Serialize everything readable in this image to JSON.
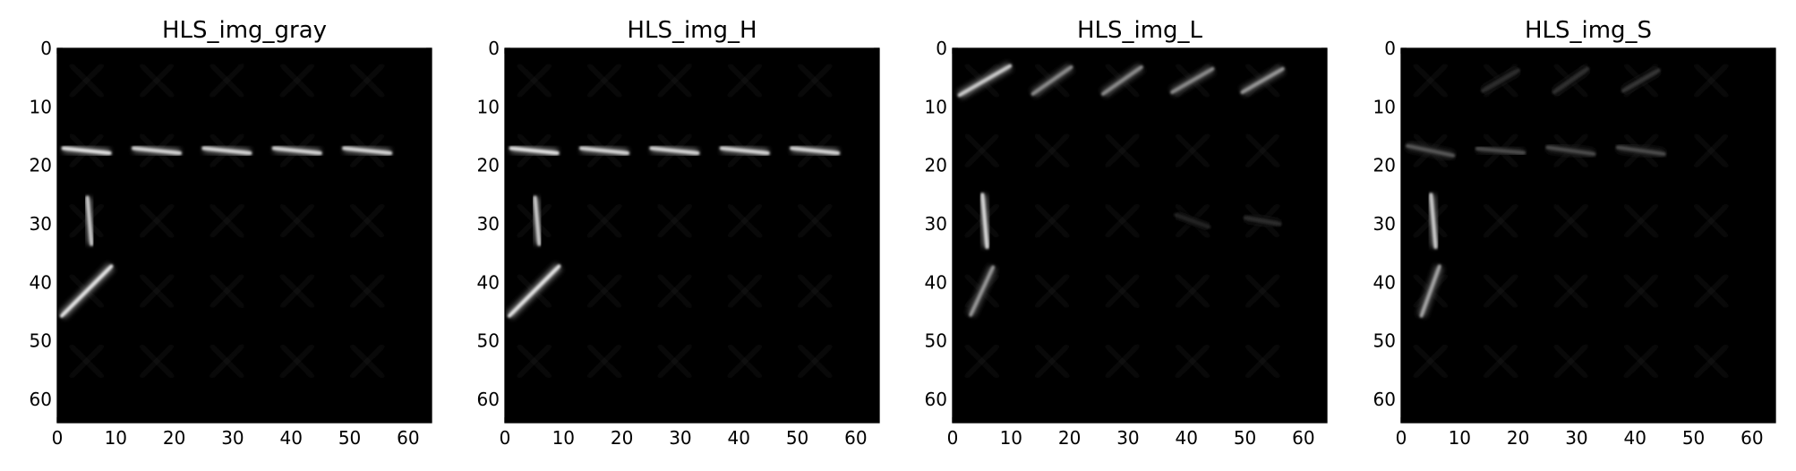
{
  "chart_data": [
    {
      "type": "heatmap",
      "title": "HLS_img_gray",
      "colormap": "gray",
      "xlim": [
        0,
        64
      ],
      "ylim": [
        64,
        0
      ],
      "x_ticks": [
        0,
        10,
        20,
        30,
        40,
        50,
        60
      ],
      "y_ticks": [
        0,
        10,
        20,
        30,
        40,
        50,
        60
      ],
      "features": [
        {
          "kind": "dash",
          "cx": 5,
          "cy": 17.5,
          "angle": 6,
          "length": 8,
          "intensity": 0.9
        },
        {
          "kind": "dash",
          "cx": 17,
          "cy": 17.5,
          "angle": 6,
          "length": 8,
          "intensity": 0.85
        },
        {
          "kind": "dash",
          "cx": 29,
          "cy": 17.5,
          "angle": 6,
          "length": 8,
          "intensity": 0.85
        },
        {
          "kind": "dash",
          "cx": 41,
          "cy": 17.5,
          "angle": 6,
          "length": 8,
          "intensity": 0.85
        },
        {
          "kind": "dash",
          "cx": 53,
          "cy": 17.5,
          "angle": 6,
          "length": 8,
          "intensity": 0.85
        },
        {
          "kind": "dash",
          "cx": 5.5,
          "cy": 29.5,
          "angle": 85,
          "length": 8,
          "intensity": 0.8
        },
        {
          "kind": "dash",
          "cx": 5,
          "cy": 41.5,
          "angle": 135,
          "length": 12,
          "intensity": 0.9
        }
      ]
    },
    {
      "type": "heatmap",
      "title": "HLS_img_H",
      "colormap": "gray",
      "xlim": [
        0,
        64
      ],
      "ylim": [
        64,
        0
      ],
      "x_ticks": [
        0,
        10,
        20,
        30,
        40,
        50,
        60
      ],
      "y_ticks": [
        0,
        10,
        20,
        30,
        40,
        50,
        60
      ],
      "features": [
        {
          "kind": "dash",
          "cx": 5,
          "cy": 17.5,
          "angle": 6,
          "length": 8,
          "intensity": 0.9
        },
        {
          "kind": "dash",
          "cx": 17,
          "cy": 17.5,
          "angle": 6,
          "length": 8,
          "intensity": 0.85
        },
        {
          "kind": "dash",
          "cx": 29,
          "cy": 17.5,
          "angle": 6,
          "length": 8,
          "intensity": 0.85
        },
        {
          "kind": "dash",
          "cx": 41,
          "cy": 17.5,
          "angle": 6,
          "length": 8,
          "intensity": 0.85
        },
        {
          "kind": "dash",
          "cx": 53,
          "cy": 17.5,
          "angle": 6,
          "length": 8,
          "intensity": 0.85
        },
        {
          "kind": "dash",
          "cx": 5.5,
          "cy": 29.5,
          "angle": 85,
          "length": 8,
          "intensity": 0.8
        },
        {
          "kind": "dash",
          "cx": 5,
          "cy": 41.5,
          "angle": 135,
          "length": 12,
          "intensity": 0.9
        }
      ]
    },
    {
      "type": "heatmap",
      "title": "HLS_img_L",
      "colormap": "gray",
      "xlim": [
        0,
        64
      ],
      "ylim": [
        64,
        0
      ],
      "x_ticks": [
        0,
        10,
        20,
        30,
        40,
        50,
        60
      ],
      "y_ticks": [
        0,
        10,
        20,
        30,
        40,
        50,
        60
      ],
      "features": [
        {
          "kind": "dash",
          "cx": 5.5,
          "cy": 5.5,
          "angle": -30,
          "length": 10,
          "intensity": 0.8
        },
        {
          "kind": "dash",
          "cx": 17,
          "cy": 5.5,
          "angle": -35,
          "length": 8,
          "intensity": 0.55
        },
        {
          "kind": "dash",
          "cx": 29,
          "cy": 5.5,
          "angle": -35,
          "length": 8,
          "intensity": 0.55
        },
        {
          "kind": "dash",
          "cx": 41,
          "cy": 5.5,
          "angle": -30,
          "length": 8,
          "intensity": 0.55
        },
        {
          "kind": "dash",
          "cx": 53,
          "cy": 5.5,
          "angle": -30,
          "length": 8,
          "intensity": 0.6
        },
        {
          "kind": "band",
          "cx": 5,
          "cy": 17.5,
          "angle": 0,
          "length": 9,
          "intensity": 0.35
        },
        {
          "kind": "band",
          "cx": 17,
          "cy": 17.5,
          "angle": 0,
          "length": 9,
          "intensity": 0.3
        },
        {
          "kind": "band",
          "cx": 29,
          "cy": 17.5,
          "angle": 0,
          "length": 9,
          "intensity": 0.3
        },
        {
          "kind": "band",
          "cx": 41,
          "cy": 17.5,
          "angle": 0,
          "length": 9,
          "intensity": 0.35
        },
        {
          "kind": "band",
          "cx": 53,
          "cy": 17.5,
          "angle": 0,
          "length": 9,
          "intensity": 0.3
        },
        {
          "kind": "dash",
          "cx": 5.5,
          "cy": 29.5,
          "angle": 85,
          "length": 9,
          "intensity": 0.85
        },
        {
          "kind": "dash",
          "cx": 5,
          "cy": 41.5,
          "angle": 115,
          "length": 9,
          "intensity": 0.6
        },
        {
          "kind": "dash",
          "cx": 41,
          "cy": 29.5,
          "angle": 20,
          "length": 6,
          "intensity": 0.15
        },
        {
          "kind": "dash",
          "cx": 53,
          "cy": 29.5,
          "angle": 10,
          "length": 6,
          "intensity": 0.18
        }
      ]
    },
    {
      "type": "heatmap",
      "title": "HLS_img_S",
      "colormap": "gray",
      "xlim": [
        0,
        64
      ],
      "ylim": [
        64,
        0
      ],
      "x_ticks": [
        0,
        10,
        20,
        30,
        40,
        50,
        60
      ],
      "y_ticks": [
        0,
        10,
        20,
        30,
        40,
        50,
        60
      ],
      "features": [
        {
          "kind": "dash",
          "cx": 17,
          "cy": 5.5,
          "angle": -30,
          "length": 7,
          "intensity": 0.18
        },
        {
          "kind": "dash",
          "cx": 29,
          "cy": 5.5,
          "angle": -35,
          "length": 7,
          "intensity": 0.2
        },
        {
          "kind": "dash",
          "cx": 41,
          "cy": 5.5,
          "angle": -30,
          "length": 7,
          "intensity": 0.22
        },
        {
          "kind": "dash",
          "cx": 5,
          "cy": 17.5,
          "angle": 12,
          "length": 8,
          "intensity": 0.35
        },
        {
          "kind": "dash",
          "cx": 17,
          "cy": 17.5,
          "angle": 5,
          "length": 8,
          "intensity": 0.3
        },
        {
          "kind": "dash",
          "cx": 29,
          "cy": 17.5,
          "angle": 8,
          "length": 8,
          "intensity": 0.3
        },
        {
          "kind": "dash",
          "cx": 41,
          "cy": 17.5,
          "angle": 8,
          "length": 8,
          "intensity": 0.3
        },
        {
          "kind": "band",
          "cx": 53,
          "cy": 17.5,
          "angle": 0,
          "length": 8,
          "intensity": 0.25
        },
        {
          "kind": "dash",
          "cx": 5.5,
          "cy": 29.5,
          "angle": 85,
          "length": 9,
          "intensity": 0.8
        },
        {
          "kind": "dash",
          "cx": 5,
          "cy": 41.5,
          "angle": 110,
          "length": 9,
          "intensity": 0.65
        }
      ]
    }
  ]
}
